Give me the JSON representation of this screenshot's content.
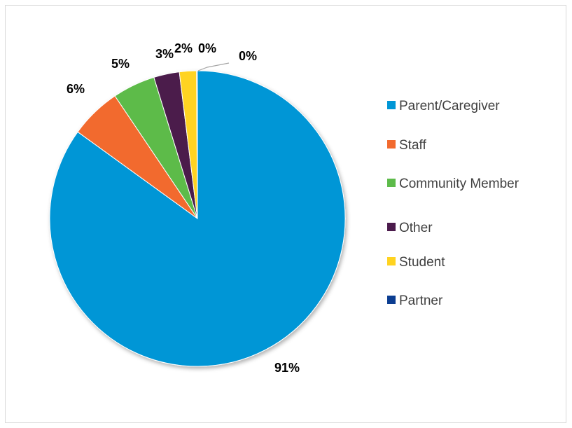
{
  "chart_data": {
    "type": "pie",
    "title": "",
    "series": [
      {
        "values": [
          {
            "category": "Parent/Caregiver",
            "value": 91,
            "label": "91%",
            "color": "#0096D6"
          },
          {
            "category": "Staff",
            "value": 6,
            "label": "6%",
            "color": "#F26A2E"
          },
          {
            "category": "Community Member",
            "value": 5,
            "label": "5%",
            "color": "#5DBB4A"
          },
          {
            "category": "Other",
            "value": 3,
            "label": "3%",
            "color": "#4B1B4C"
          },
          {
            "category": "Student",
            "value": 2,
            "label": "2%",
            "color": "#FFD320"
          },
          {
            "category": "Partner",
            "value": 0.1,
            "label": "0%",
            "color": "#0B3D91"
          }
        ]
      }
    ],
    "extra_labels": [
      "0%"
    ],
    "legend": {
      "position": "right",
      "entries": [
        {
          "label": "Parent/Caregiver",
          "color": "#0096D6"
        },
        {
          "label": "Staff",
          "color": "#F26A2E"
        },
        {
          "label": "Community Member",
          "color": "#5DBB4A"
        },
        {
          "label": "Other",
          "color": "#4B1B4C"
        },
        {
          "label": "Student",
          "color": "#FFD320"
        },
        {
          "label": "Partner",
          "color": "#0B3D91"
        }
      ]
    }
  }
}
